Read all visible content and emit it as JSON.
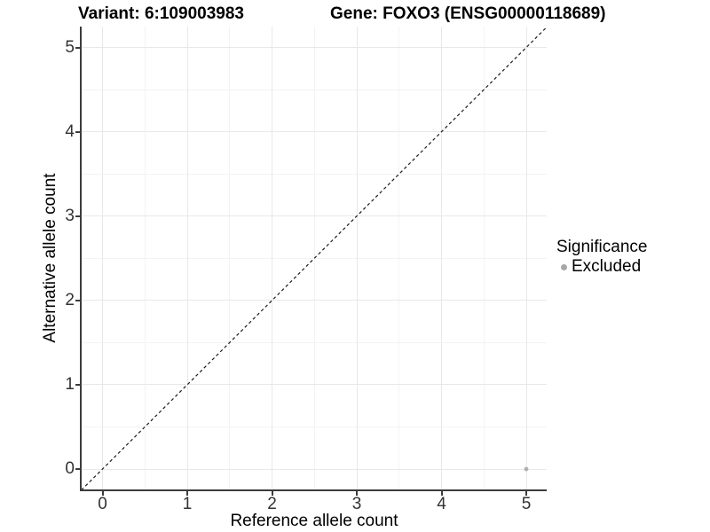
{
  "chart_data": {
    "type": "scatter",
    "title_left": "Variant: 6:109003983",
    "title_right": "Gene: FOXO3 (ENSG00000118689)",
    "xlabel": "Reference allele count",
    "ylabel": "Alternative allele count",
    "x_ticks": [
      0,
      1,
      2,
      3,
      4,
      5
    ],
    "y_ticks": [
      0,
      1,
      2,
      3,
      4,
      5
    ],
    "xlim": [
      -0.25,
      5.25
    ],
    "ylim": [
      -0.25,
      5.25
    ],
    "grid": {
      "major": true,
      "minor": true
    },
    "identity_line": {
      "style": "dashed",
      "color": "#1a1a1a",
      "from": [
        -0.25,
        -0.25
      ],
      "to": [
        5.25,
        5.25
      ]
    },
    "series": [
      {
        "name": "Excluded",
        "color": "#b0b0b0",
        "points": [
          [
            5,
            0
          ]
        ]
      }
    ],
    "legend": {
      "title": "Significance",
      "position": "right",
      "items": [
        {
          "label": "Excluded",
          "color": "#a8a8a8",
          "marker": "circle"
        }
      ]
    }
  },
  "colors": {
    "background": "#ffffff",
    "grid_major": "#e8e8e8",
    "grid_minor": "#f3f3f3",
    "axis_line": "#3c3c3c",
    "tick_label": "#333333",
    "title": "#000000"
  }
}
